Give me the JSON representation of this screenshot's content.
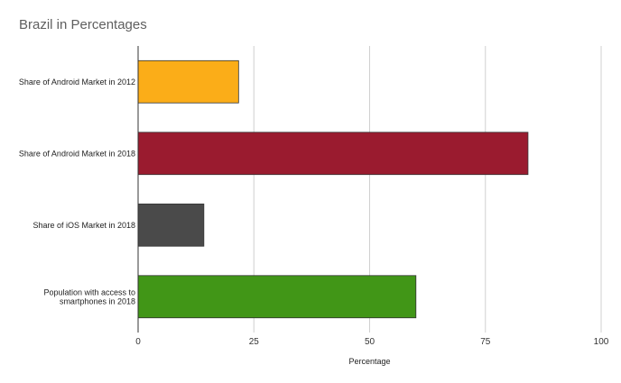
{
  "chart_data": {
    "type": "bar",
    "orientation": "horizontal",
    "title": "Brazil in Percentages",
    "xlabel": "Percentage",
    "ylabel": "",
    "xlim": [
      0,
      100
    ],
    "xticks": [
      "0",
      "25",
      "50",
      "75",
      "100"
    ],
    "grid": true,
    "categories": [
      [
        "Share of Android Market in 2012"
      ],
      [
        "Share of Android Market in 2018"
      ],
      [
        "Share of iOS Market in 2018"
      ],
      [
        "Population with access to",
        "smartphones in 2018"
      ]
    ],
    "values": [
      21.7,
      84.2,
      14.2,
      60
    ],
    "colors": [
      "#fbad18",
      "#9a1b2f",
      "#4a4a4a",
      "#419617"
    ]
  }
}
